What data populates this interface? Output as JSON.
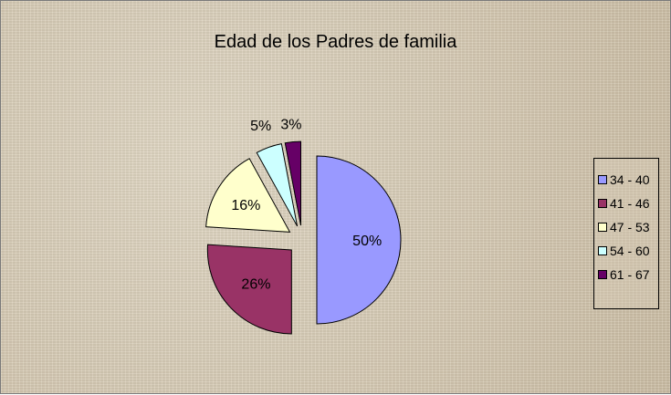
{
  "chart_data": {
    "type": "pie",
    "title": "Edad de los Padres de familia",
    "categories": [
      "34 - 40",
      "41 - 46",
      "47 - 53",
      "54 - 60",
      "61 - 67"
    ],
    "values": [
      50,
      26,
      16,
      5,
      3
    ],
    "labels": [
      "50%",
      "26%",
      "16%",
      "5%",
      "3%"
    ],
    "colors": [
      "#9999ff",
      "#993366",
      "#ffffcc",
      "#ccffff",
      "#660066"
    ],
    "label_colors": [
      "#000000",
      "#000000",
      "#000000",
      "#000000",
      "#000000"
    ],
    "exploded": true,
    "legend_position": "right"
  }
}
